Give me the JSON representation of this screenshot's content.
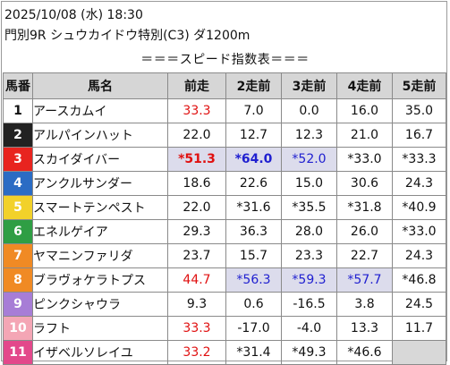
{
  "header": {
    "date_line": "2025/10/08 (水) 18:30",
    "race_line": "門別9R シュウカイドウ特別(C3) ダ1200m",
    "section_title": "＝＝＝スピード指数表＝＝＝"
  },
  "table": {
    "columns": [
      "馬番",
      "馬名",
      "前走",
      "2走前",
      "3走前",
      "4走前",
      "5走前"
    ],
    "rows": [
      {
        "num": "1",
        "name": "アースカムイ",
        "c1": "33.3",
        "c2": "7.0",
        "c3": "0.0",
        "c4": "16.0",
        "c5": "35.0"
      },
      {
        "num": "2",
        "name": "アルパインハット",
        "c1": "22.0",
        "c2": "12.7",
        "c3": "12.3",
        "c4": "21.0",
        "c5": "16.7"
      },
      {
        "num": "3",
        "name": "スカイダイバー",
        "c1": "*51.3",
        "c2": "*64.0",
        "c3": "*52.0",
        "c4": "*33.0",
        "c5": "*33.3"
      },
      {
        "num": "4",
        "name": "アンクルサンダー",
        "c1": "18.6",
        "c2": "22.6",
        "c3": "15.0",
        "c4": "30.6",
        "c5": "24.3"
      },
      {
        "num": "5",
        "name": "スマートテンペスト",
        "c1": "22.0",
        "c2": "*31.6",
        "c3": "*35.5",
        "c4": "*31.8",
        "c5": "*40.9"
      },
      {
        "num": "6",
        "name": "エネルゲイア",
        "c1": "29.3",
        "c2": "36.3",
        "c3": "28.0",
        "c4": "26.0",
        "c5": "*33.0"
      },
      {
        "num": "7",
        "name": "ヤマニンファリダ",
        "c1": "23.7",
        "c2": "15.7",
        "c3": "23.3",
        "c4": "22.7",
        "c5": "24.3"
      },
      {
        "num": "8",
        "name": "ブラヴォケラトプス",
        "c1": "44.7",
        "c2": "*56.3",
        "c3": "*59.3",
        "c4": "*57.7",
        "c5": "*46.8"
      },
      {
        "num": "9",
        "name": "ピンクシャウラ",
        "c1": "9.3",
        "c2": "0.6",
        "c3": "-16.5",
        "c4": "3.8",
        "c5": "24.5"
      },
      {
        "num": "10",
        "name": "ラフト",
        "c1": "33.3",
        "c2": "-17.0",
        "c3": "-4.0",
        "c4": "13.3",
        "c5": "11.7"
      },
      {
        "num": "11",
        "name": "イザベルソレイユ",
        "c1": "33.2",
        "c2": "*31.4",
        "c3": "*49.3",
        "c4": "*46.6",
        "c5": ""
      }
    ]
  },
  "colors": {
    "frame_colors": [
      "#ffffff",
      "#222222",
      "#e8241f",
      "#2b6cc4",
      "#f2d12a",
      "#2f9e44",
      "#f08a24",
      "#f08a24",
      "#a77dd6",
      "#f4a6b5",
      "#e3488b"
    ],
    "num_text_colors": [
      "#111111",
      "#ffffff",
      "#ffffff",
      "#ffffff",
      "#ffffff",
      "#ffffff",
      "#ffffff",
      "#ffffff",
      "#ffffff",
      "#ffffff",
      "#ffffff"
    ],
    "red_text": "#e01010",
    "blue_text": "#2020d0",
    "highlight_bg": "#dcdcec",
    "header_bg": "#d6d6d6"
  }
}
